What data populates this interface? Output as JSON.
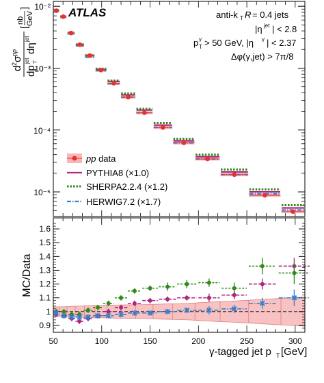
{
  "figure": {
    "experiment_label": "ATLAS",
    "info_lines": [
      "anti-kT R = 0.4 jets",
      "|ηjet| < 2.8",
      "pTγ > 50 GeV, |ηγ| < 2.37",
      "Δφ(γ,jet) > 7π/8"
    ],
    "top_ylabel": "d²σpp / dpTjet dηjet [nb/GeV]",
    "bottom_ylabel": "MC/Data",
    "xlabel": "γ-tagged jet pT [GeV]"
  },
  "colors": {
    "data": "#e8302c",
    "data_band": "#f7b7b7",
    "pythia": "#b0247f",
    "sherpa": "#2e8b1a",
    "herwig": "#3a7cc9"
  },
  "chart_data": [
    {
      "type": "scatter",
      "panel": "spectrum",
      "log_y": true,
      "xlim": [
        50,
        310
      ],
      "ylim": [
        4e-06,
        0.012
      ],
      "x_ticks": [
        50,
        100,
        150,
        200,
        250,
        300
      ],
      "y_ticks": [
        "10⁻⁵",
        "10⁻⁴",
        "10⁻³",
        "10⁻²"
      ],
      "legend_placement": "bottom-left",
      "bins": [
        {
          "lo": 50,
          "hi": 56.6
        },
        {
          "lo": 56.6,
          "hi": 64.1
        },
        {
          "lo": 64.1,
          "hi": 72.6
        },
        {
          "lo": 72.6,
          "hi": 82.2
        },
        {
          "lo": 82.2,
          "hi": 93.1
        },
        {
          "lo": 93.1,
          "hi": 105.4
        },
        {
          "lo": 105.4,
          "hi": 119.4
        },
        {
          "lo": 119.4,
          "hi": 135.2
        },
        {
          "lo": 135.2,
          "hi": 153.1
        },
        {
          "lo": 153.1,
          "hi": 173.4
        },
        {
          "lo": 173.4,
          "hi": 196.4
        },
        {
          "lo": 196.4,
          "hi": 222.4
        },
        {
          "lo": 222.4,
          "hi": 251.9
        },
        {
          "lo": 251.9,
          "hi": 285.3
        },
        {
          "lo": 285.3,
          "hi": 310
        }
      ],
      "series": [
        {
          "name": "pp data",
          "style": "data",
          "values": [
            0.0085,
            0.0068,
            0.0037,
            0.0024,
            0.0016,
            0.00093,
            0.00057,
            0.00034,
            0.00019,
            0.00011,
            6.2e-05,
            3.4e-05,
            1.9e-05,
            8.8e-06,
            4.8e-06
          ]
        },
        {
          "name": "PYTHIA8 (×1.0)",
          "style": "pythia",
          "values": [
            0.0085,
            0.0067,
            0.0036,
            0.0023,
            0.0016,
            0.00095,
            0.00061,
            0.00037,
            0.00021,
            0.00012,
            6.7e-05,
            3.7e-05,
            2.1e-05,
            1e-05,
            5.5e-06
          ]
        },
        {
          "name": "SHERPA2.2.4 (×1.2)",
          "style": "sherpa",
          "values": [
            0.0086,
            0.0068,
            0.0037,
            0.0024,
            0.0016,
            0.00098,
            0.00063,
            0.00039,
            0.00022,
            0.00013,
            7.2e-05,
            4e-05,
            2.3e-05,
            1.1e-05,
            6.1e-06
          ]
        },
        {
          "name": "HERWIG7.2 (×1.7)",
          "style": "herwig",
          "values": [
            0.0084,
            0.0066,
            0.0036,
            0.0023,
            0.0015,
            0.00091,
            0.00056,
            0.00034,
            0.00019,
            0.00011,
            6.2e-05,
            3.4e-05,
            1.9e-05,
            9.3e-06,
            5.1e-06
          ]
        }
      ]
    },
    {
      "type": "scatter",
      "panel": "ratio",
      "xlim": [
        50,
        310
      ],
      "ylim": [
        0.85,
        1.68
      ],
      "y_ticks": [
        0.9,
        1,
        1.1,
        1.2,
        1.3,
        1.4,
        1.5,
        1.6
      ],
      "x_ticks": [
        50,
        100,
        150,
        200,
        250,
        300
      ],
      "reference_line": 1,
      "data_uncertainty": [
        {
          "x": 50,
          "lo": 0.966,
          "hi": 1.034
        },
        {
          "x": 60,
          "lo": 0.965,
          "hi": 1.035
        },
        {
          "x": 70,
          "lo": 0.962,
          "hi": 1.038
        },
        {
          "x": 80,
          "lo": 0.958,
          "hi": 1.042
        },
        {
          "x": 90,
          "lo": 0.955,
          "hi": 1.045
        },
        {
          "x": 100,
          "lo": 0.955,
          "hi": 1.045
        },
        {
          "x": 110,
          "lo": 0.953,
          "hi": 1.047
        },
        {
          "x": 120,
          "lo": 0.952,
          "hi": 1.048
        },
        {
          "x": 130,
          "lo": 0.951,
          "hi": 1.049
        },
        {
          "x": 140,
          "lo": 0.95,
          "hi": 1.05
        },
        {
          "x": 150,
          "lo": 0.948,
          "hi": 1.052
        },
        {
          "x": 160,
          "lo": 0.946,
          "hi": 1.054
        },
        {
          "x": 170,
          "lo": 0.944,
          "hi": 1.056
        },
        {
          "x": 180,
          "lo": 0.942,
          "hi": 1.058
        },
        {
          "x": 190,
          "lo": 0.94,
          "hi": 1.06
        },
        {
          "x": 200,
          "lo": 0.936,
          "hi": 1.064
        },
        {
          "x": 210,
          "lo": 0.932,
          "hi": 1.068
        },
        {
          "x": 220,
          "lo": 0.928,
          "hi": 1.072
        },
        {
          "x": 230,
          "lo": 0.925,
          "hi": 1.075
        },
        {
          "x": 240,
          "lo": 0.922,
          "hi": 1.078
        },
        {
          "x": 250,
          "lo": 0.918,
          "hi": 1.082
        },
        {
          "x": 260,
          "lo": 0.914,
          "hi": 1.086
        },
        {
          "x": 270,
          "lo": 0.91,
          "hi": 1.09
        },
        {
          "x": 280,
          "lo": 0.906,
          "hi": 1.094
        },
        {
          "x": 290,
          "lo": 0.902,
          "hi": 1.098
        },
        {
          "x": 300,
          "lo": 0.898,
          "hi": 1.102
        },
        {
          "x": 310,
          "lo": 0.895,
          "hi": 1.105
        }
      ],
      "series": [
        {
          "name": "PYTHIA8 (×1.0)",
          "style": "pythia",
          "points": [
            {
              "x": 53,
              "y": 0.98,
              "xerr": 2.5,
              "yerr": 0.02
            },
            {
              "x": 61,
              "y": 0.97,
              "xerr": 3,
              "yerr": 0.02
            },
            {
              "x": 69,
              "y": 0.95,
              "xerr": 3.5,
              "yerr": 0.02
            },
            {
              "x": 77,
              "y": 0.93,
              "xerr": 4,
              "yerr": 0.02
            },
            {
              "x": 86,
              "y": 0.95,
              "xerr": 4.5,
              "yerr": 0.02
            },
            {
              "x": 96,
              "y": 0.97,
              "xerr": 5,
              "yerr": 0.02
            },
            {
              "x": 107,
              "y": 1.0,
              "xerr": 5.5,
              "yerr": 0.02
            },
            {
              "x": 120,
              "y": 1.03,
              "xerr": 6.5,
              "yerr": 0.02
            },
            {
              "x": 134,
              "y": 1.06,
              "xerr": 7,
              "yerr": 0.02
            },
            {
              "x": 150,
              "y": 1.08,
              "xerr": 8,
              "yerr": 0.02
            },
            {
              "x": 168,
              "y": 1.09,
              "xerr": 9,
              "yerr": 0.02
            },
            {
              "x": 188,
              "y": 1.1,
              "xerr": 10,
              "yerr": 0.02
            },
            {
              "x": 211,
              "y": 1.1,
              "xerr": 11,
              "yerr": 0.03
            },
            {
              "x": 237,
              "y": 1.12,
              "xerr": 13,
              "yerr": 0.03
            },
            {
              "x": 266,
              "y": 1.2,
              "xerr": 14,
              "yerr": 0.04
            },
            {
              "x": 299,
              "y": 1.33,
              "xerr": 16,
              "yerr": 0.06
            }
          ]
        },
        {
          "name": "SHERPA2.2.4 (×1.2)",
          "style": "sherpa",
          "points": [
            {
              "x": 53,
              "y": 1.0,
              "xerr": 2.5,
              "yerr": 0.02
            },
            {
              "x": 61,
              "y": 1.0,
              "xerr": 3,
              "yerr": 0.02
            },
            {
              "x": 69,
              "y": 0.98,
              "xerr": 3.5,
              "yerr": 0.02
            },
            {
              "x": 77,
              "y": 0.98,
              "xerr": 4,
              "yerr": 0.02
            },
            {
              "x": 86,
              "y": 1.01,
              "xerr": 4.5,
              "yerr": 0.02
            },
            {
              "x": 96,
              "y": 1.03,
              "xerr": 5,
              "yerr": 0.02
            },
            {
              "x": 107,
              "y": 1.06,
              "xerr": 5.5,
              "yerr": 0.02
            },
            {
              "x": 120,
              "y": 1.1,
              "xerr": 6.5,
              "yerr": 0.02
            },
            {
              "x": 134,
              "y": 1.15,
              "xerr": 7,
              "yerr": 0.02
            },
            {
              "x": 150,
              "y": 1.17,
              "xerr": 8,
              "yerr": 0.02
            },
            {
              "x": 168,
              "y": 1.18,
              "xerr": 9,
              "yerr": 0.03
            },
            {
              "x": 188,
              "y": 1.2,
              "xerr": 10,
              "yerr": 0.03
            },
            {
              "x": 211,
              "y": 1.21,
              "xerr": 11,
              "yerr": 0.03
            },
            {
              "x": 237,
              "y": 1.17,
              "xerr": 13,
              "yerr": 0.04
            },
            {
              "x": 266,
              "y": 1.33,
              "xerr": 14,
              "yerr": 0.06
            },
            {
              "x": 299,
              "y": 1.28,
              "xerr": 16,
              "yerr": 0.08
            }
          ]
        },
        {
          "name": "HERWIG7.2 (×1.7)",
          "style": "herwig",
          "points": [
            {
              "x": 53,
              "y": 0.99,
              "xerr": 2.5,
              "yerr": 0.02
            },
            {
              "x": 61,
              "y": 0.97,
              "xerr": 3,
              "yerr": 0.02
            },
            {
              "x": 69,
              "y": 0.96,
              "xerr": 3.5,
              "yerr": 0.02
            },
            {
              "x": 77,
              "y": 0.96,
              "xerr": 4,
              "yerr": 0.02
            },
            {
              "x": 86,
              "y": 0.96,
              "xerr": 4.5,
              "yerr": 0.02
            },
            {
              "x": 96,
              "y": 0.97,
              "xerr": 5,
              "yerr": 0.02
            },
            {
              "x": 107,
              "y": 0.97,
              "xerr": 5.5,
              "yerr": 0.02
            },
            {
              "x": 120,
              "y": 0.98,
              "xerr": 6.5,
              "yerr": 0.02
            },
            {
              "x": 134,
              "y": 0.99,
              "xerr": 7,
              "yerr": 0.02
            },
            {
              "x": 150,
              "y": 0.99,
              "xerr": 8,
              "yerr": 0.02
            },
            {
              "x": 168,
              "y": 1.0,
              "xerr": 9,
              "yerr": 0.02
            },
            {
              "x": 188,
              "y": 1.01,
              "xerr": 10,
              "yerr": 0.02
            },
            {
              "x": 211,
              "y": 1.01,
              "xerr": 11,
              "yerr": 0.03
            },
            {
              "x": 237,
              "y": 1.02,
              "xerr": 13,
              "yerr": 0.03
            },
            {
              "x": 266,
              "y": 1.06,
              "xerr": 14,
              "yerr": 0.04
            },
            {
              "x": 299,
              "y": 1.1,
              "xerr": 16,
              "yerr": 0.06
            }
          ]
        }
      ]
    }
  ]
}
